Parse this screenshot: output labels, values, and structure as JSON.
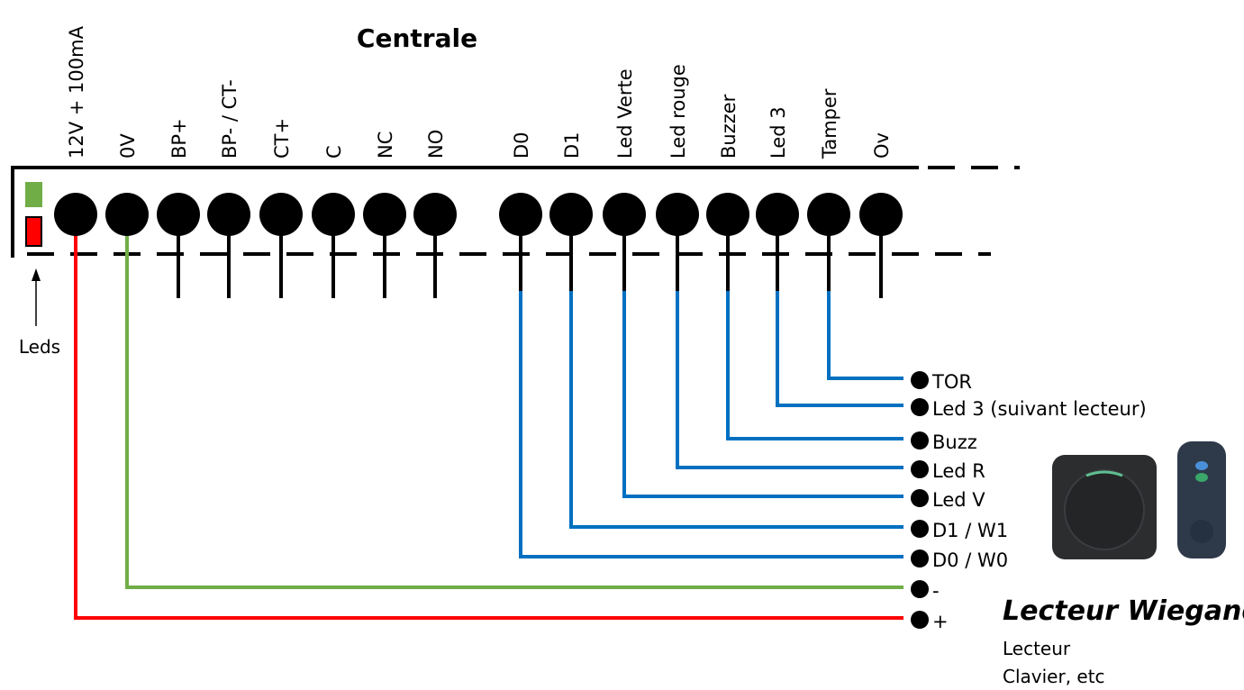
{
  "title": "Centrale",
  "terminals": [
    "12V + 100mA",
    "0V",
    "BP+",
    "BP- / CT-",
    "CT+",
    "C",
    "NC",
    "NO",
    "D0",
    "D1",
    "Led Verte",
    "Led rouge",
    "Buzzer",
    "Led 3",
    "Tamper",
    "Ov"
  ],
  "leds_label": "Leds",
  "reader_pins": [
    "TOR",
    "Led 3 (suivant lecteur)",
    "Buzz",
    "Led R",
    "Led V",
    "D1 / W1",
    "D0 / W0",
    "-",
    "+"
  ],
  "reader": {
    "title": "Lecteur Wiegand",
    "lines": [
      "Lecteur",
      "Clavier, etc"
    ]
  }
}
